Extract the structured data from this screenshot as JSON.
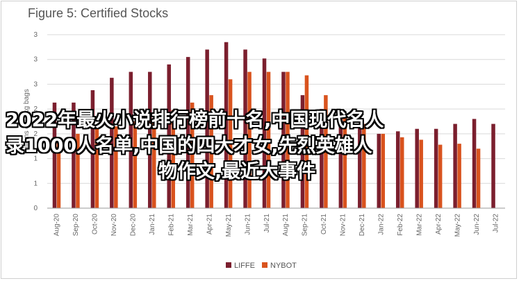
{
  "title": "Figure 5: Certified Stocks",
  "chart_data": {
    "type": "bar",
    "title": "Figure 5: Certified Stocks",
    "ylabel": "millions of 60kg bags",
    "xlabel": "",
    "ylim": [
      0,
      3.5
    ],
    "yticks": [
      "0",
      "1",
      "1",
      "2",
      "2",
      "3",
      "3",
      "3"
    ],
    "categories": [
      "Aug-20",
      "Sep-20",
      "Oct-20",
      "Nov-20",
      "Dec-20",
      "Jan-21",
      "Feb-21",
      "Mar-21",
      "Apr-21",
      "May-21",
      "Jun-21",
      "Jul-21",
      "Aug-21",
      "Sep-21",
      "Oct-21",
      "Nov-21",
      "Dec-21",
      "Jan-22",
      "Feb-22",
      "Mar-22",
      "Apr-22",
      "May-22",
      "Jun-22",
      "Jul-22"
    ],
    "series": [
      {
        "name": "LIFFE",
        "color": "#7b1f2e",
        "values": [
          2.13,
          2.13,
          2.38,
          2.63,
          2.75,
          2.75,
          2.9,
          3.05,
          3.2,
          3.35,
          3.2,
          3.02,
          2.75,
          2.28,
          2.0,
          1.8,
          1.7,
          1.5,
          1.55,
          1.6,
          1.6,
          1.7,
          1.8,
          1.7
        ]
      },
      {
        "name": "NYBOT",
        "color": "#d9531e",
        "values": [
          1.43,
          1.5,
          1.6,
          1.65,
          1.75,
          1.75,
          1.98,
          2.13,
          2.28,
          2.6,
          2.75,
          2.75,
          2.75,
          2.68,
          2.28,
          1.85,
          1.7,
          1.5,
          1.43,
          1.38,
          1.28,
          1.3,
          1.2,
          null
        ]
      }
    ],
    "legend": "bottom",
    "grid": true
  },
  "overlay": {
    "lines": [
      "2022年最火小说排行榜前十名,中国现代名人",
      "录1000人名单,中国的四大才女,先烈英雄人",
      "物作文,最近大事件"
    ]
  }
}
